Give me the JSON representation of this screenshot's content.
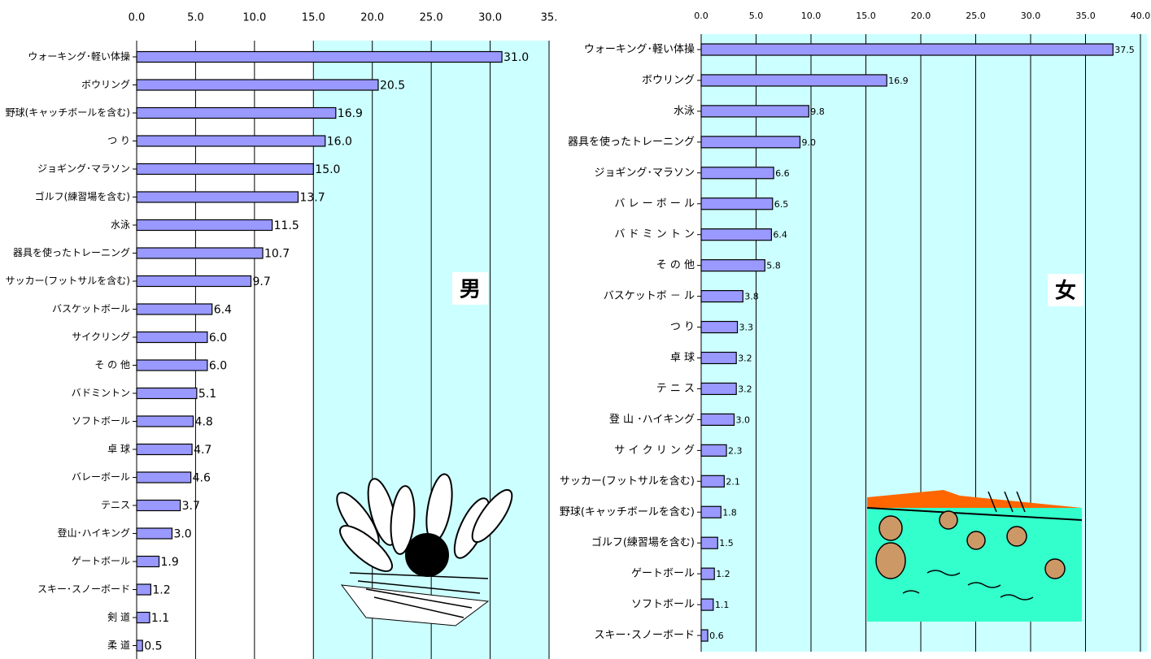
{
  "chart_data": [
    {
      "type": "bar",
      "orientation": "horizontal",
      "annotation": "男",
      "color": "#9999ff",
      "categories": [
        "ウォーキング･軽い体操",
        "ボウリング",
        "野球(キャッチボールを含む)",
        "つ り",
        "ジョギング･マラソン",
        "ゴルフ(練習場を含む)",
        "水泳",
        "器具を使ったトレーニング",
        "サッカー(フットサルを含む)",
        "バスケットボール",
        "サイクリング",
        "そ の 他",
        "バドミントン",
        "ソフトボール",
        "卓 球",
        "バレーボール",
        "テニス",
        "登山･ハイキング",
        "ゲートボール",
        "スキー･スノーボード",
        "剣 道",
        "柔 道"
      ],
      "values": [
        31.0,
        20.5,
        16.9,
        16.0,
        15.0,
        13.7,
        11.5,
        10.7,
        9.7,
        6.4,
        6.0,
        6.0,
        5.1,
        4.8,
        4.7,
        4.6,
        3.7,
        3.0,
        1.9,
        1.2,
        1.1,
        0.5
      ],
      "value_labels": [
        "31.0",
        "20.5",
        "16.9",
        "16.0",
        "15.0",
        "13.7",
        "11.5",
        "10.7",
        "9.7",
        "6.4",
        "6.0",
        "6.0",
        "5.1",
        "4.8",
        "4.7",
        "4.6",
        "3.7",
        "3.0",
        "1.9",
        "1.2",
        "1.1",
        "0.5"
      ],
      "xlim": [
        0,
        35
      ],
      "xticks": [
        {
          "value": 0,
          "label": "0.0"
        },
        {
          "value": 5,
          "label": "5.0"
        },
        {
          "value": 10,
          "label": "10.0"
        },
        {
          "value": 15,
          "label": "15.0"
        },
        {
          "value": 20,
          "label": "20.0"
        },
        {
          "value": 25,
          "label": "25.0"
        },
        {
          "value": 30,
          "label": "30.0"
        },
        {
          "value": 35,
          "label": "35."
        }
      ],
      "grid": true
    },
    {
      "type": "bar",
      "orientation": "horizontal",
      "annotation": "女",
      "color": "#9999ff",
      "categories": [
        "ウォーキング･軽い体操",
        "ボウリング",
        "水泳",
        "器具を使ったトレーニング",
        "ジョギング･マラソン",
        "バ レ ー ボ ー ル",
        "バ ド ミ ン ト ン",
        "そ の 他",
        "バスケットボ － ル",
        "つ り",
        "卓 球",
        "テ ニ ス",
        "登 山 ･ハイキング",
        "サ イ ク リ ン グ",
        "サッカー(フットサルを含む)",
        "野球(キャッチボールを含む)",
        "ゴルフ(練習場を含む)",
        "ゲートボール",
        "ソフトボール",
        "スキー･スノーボード"
      ],
      "values": [
        37.5,
        16.9,
        9.8,
        9.0,
        6.6,
        6.5,
        6.4,
        5.8,
        3.8,
        3.3,
        3.2,
        3.2,
        3.0,
        2.3,
        2.1,
        1.8,
        1.5,
        1.2,
        1.1,
        0.6
      ],
      "value_labels": [
        "37.5",
        "16.9",
        "9.8",
        "9.0",
        "6.6",
        "6.5",
        "6.4",
        "5.8",
        "3.8",
        "3.3",
        "3.2",
        "3.2",
        "3.0",
        "2.3",
        "2.1",
        "1.8",
        "1.5",
        "1.2",
        "1.1",
        "0.6"
      ],
      "xlim": [
        0,
        40
      ],
      "xticks": [
        {
          "value": 0,
          "label": "0.0"
        },
        {
          "value": 5,
          "label": "5.0"
        },
        {
          "value": 10,
          "label": "10.0"
        },
        {
          "value": 15,
          "label": "15.0"
        },
        {
          "value": 20,
          "label": "20.0"
        },
        {
          "value": 25,
          "label": "25.0"
        },
        {
          "value": 30,
          "label": "30.0"
        },
        {
          "value": 35,
          "label": "35.0"
        },
        {
          "value": 40,
          "label": "40.0"
        }
      ],
      "grid": true
    }
  ]
}
